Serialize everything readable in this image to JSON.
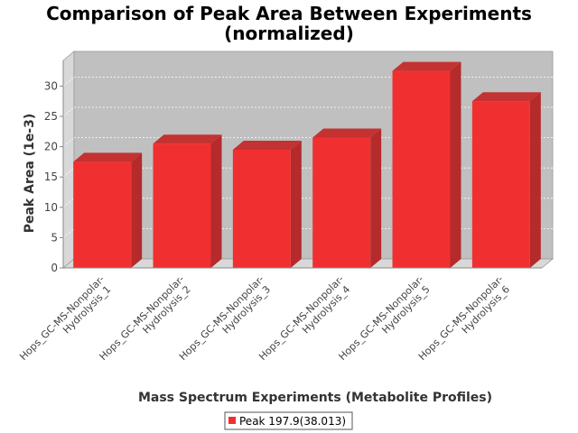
{
  "chart_data": {
    "type": "bar",
    "title": [
      "Comparison of Peak Area Between Experiments",
      "(normalized)"
    ],
    "xlabel": "Mass Spectrum Experiments (Metabolite Profiles)",
    "ylabel": "Peak Area (1e-3)",
    "ylim": [
      0,
      33
    ],
    "yticks": [
      0,
      5,
      10,
      15,
      20,
      25,
      30
    ],
    "grid": true,
    "legend_position": "bottom",
    "categories": [
      [
        "Hops_GC-MS-Nonpolar-",
        "Hydrolysis_1"
      ],
      [
        "Hops_GC-MS-Nonpolar-",
        "Hydrolysis_2"
      ],
      [
        "Hops_GC-MS-Nonpolar-",
        "Hydrolysis_3"
      ],
      [
        "Hops_GC-MS-Nonpolar-",
        "Hydrolysis_4"
      ],
      [
        "Hops_GC-MS-Nonpolar-",
        "Hydrolysis_5"
      ],
      [
        "Hops_GC-MS-Nonpolar-",
        "Hydrolysis_6"
      ]
    ],
    "series": [
      {
        "name": "Peak 197.9(38.013)",
        "color": "#f03030",
        "values": [
          17.5,
          20.5,
          19.5,
          21.5,
          32.5,
          27.5
        ]
      }
    ]
  }
}
